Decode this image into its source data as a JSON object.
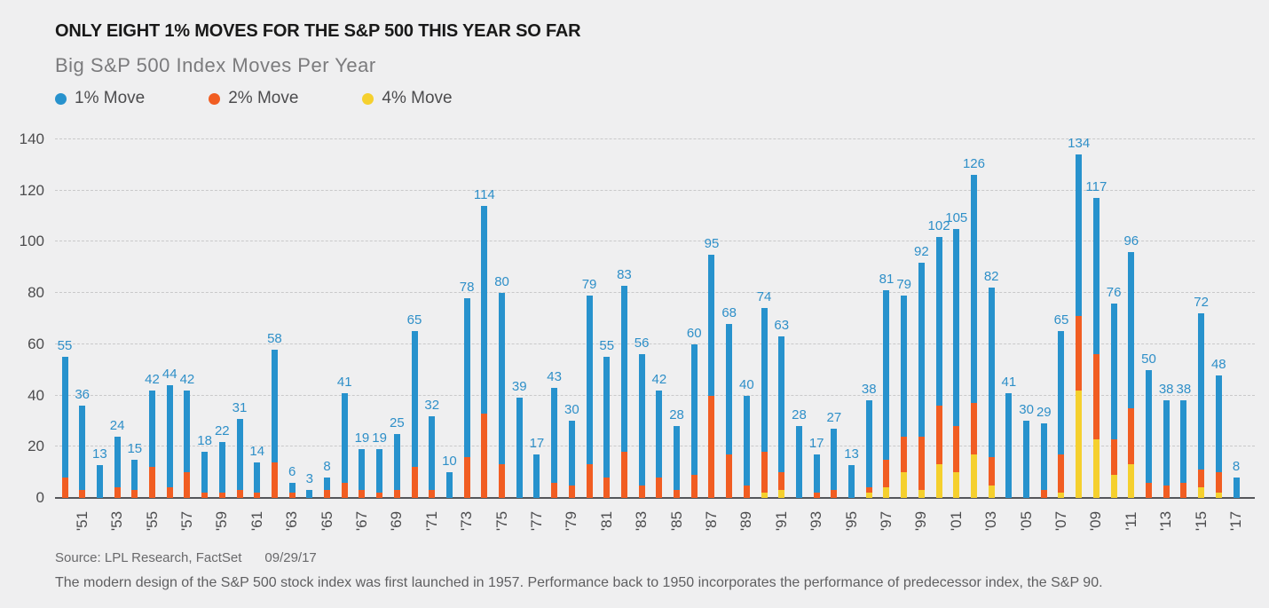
{
  "header": {
    "title": "ONLY EIGHT 1% MOVES FOR THE S&P 500 THIS YEAR SO FAR",
    "subtitle": "Big S&P 500 Index Moves Per Year"
  },
  "legend": {
    "items": [
      {
        "label": "1% Move",
        "color": "#2792cd"
      },
      {
        "label": "2% Move",
        "color": "#f15d22"
      },
      {
        "label": "4% Move",
        "color": "#f5d02e"
      }
    ]
  },
  "colors": {
    "background": "#efeff0",
    "bar_1pct": "#2792cd",
    "bar_2pct": "#f15d22",
    "bar_4pct": "#f5d02e",
    "value_label": "#2e8fc8",
    "axis_text": "#4c4c4e",
    "gridline": "#c9c9ca",
    "axis_line": "#55565a"
  },
  "axes": {
    "y_ticks": [
      0,
      20,
      40,
      60,
      80,
      100,
      120,
      140
    ],
    "x_labels": [
      "'51",
      "'53",
      "'55",
      "'57",
      "'59",
      "'61",
      "'63",
      "'65",
      "'67",
      "'69",
      "'71",
      "'73",
      "'75",
      "'77",
      "'79",
      "'81",
      "'83",
      "'85",
      "'87",
      "'89",
      "'91",
      "'93",
      "'95",
      "'97",
      "'99",
      "'01",
      "'03",
      "'05",
      "'07",
      "'09",
      "'11",
      "'13",
      "'15",
      "'17"
    ]
  },
  "footer": {
    "source": "Source: LPL Research, FactSet",
    "date": "09/29/17",
    "note": "The modern design of the S&P 500 stock index was first launched in 1957. Performance back to 1950 incorporates the performance of predecessor index, the S&P 90."
  },
  "chart_data": {
    "type": "bar",
    "stacked": true,
    "title": "ONLY EIGHT 1% MOVES FOR THE S&P 500 THIS YEAR SO FAR",
    "subtitle": "Big S&P 500 Index Moves Per Year",
    "xlabel": "Year",
    "ylabel": "Number of moves",
    "ylim": [
      0,
      140
    ],
    "grid": "horizontal-dashed",
    "legend_position": "top",
    "years": [
      1950,
      1951,
      1952,
      1953,
      1954,
      1955,
      1956,
      1957,
      1958,
      1959,
      1960,
      1961,
      1962,
      1963,
      1964,
      1965,
      1966,
      1967,
      1968,
      1969,
      1970,
      1971,
      1972,
      1973,
      1974,
      1975,
      1976,
      1977,
      1978,
      1979,
      1980,
      1981,
      1982,
      1983,
      1984,
      1985,
      1986,
      1987,
      1988,
      1989,
      1990,
      1991,
      1992,
      1993,
      1994,
      1995,
      1996,
      1997,
      1998,
      1999,
      2000,
      2001,
      2002,
      2003,
      2004,
      2005,
      2006,
      2007,
      2008,
      2009,
      2010,
      2011,
      2012,
      2013,
      2014,
      2015,
      2016,
      2017
    ],
    "series": [
      {
        "name": "1% Move",
        "color": "#2792cd",
        "role": "total-bar-height-and-label",
        "values": [
          55,
          36,
          13,
          24,
          15,
          42,
          44,
          42,
          18,
          22,
          31,
          14,
          58,
          6,
          3,
          8,
          41,
          19,
          19,
          25,
          65,
          32,
          10,
          78,
          114,
          80,
          39,
          17,
          43,
          30,
          79,
          55,
          83,
          56,
          42,
          28,
          60,
          95,
          68,
          40,
          74,
          63,
          28,
          17,
          27,
          13,
          38,
          81,
          79,
          92,
          102,
          105,
          126,
          82,
          41,
          30,
          29,
          65,
          134,
          117,
          76,
          96,
          50,
          38,
          38,
          72,
          48,
          8
        ]
      },
      {
        "name": "2% Move",
        "color": "#f15d22",
        "role": "middle-segment",
        "values": [
          8,
          3,
          0,
          4,
          3,
          12,
          4,
          10,
          2,
          2,
          3,
          2,
          14,
          2,
          0,
          3,
          6,
          3,
          2,
          3,
          12,
          3,
          0,
          16,
          33,
          13,
          0,
          0,
          6,
          5,
          13,
          8,
          18,
          5,
          8,
          3,
          9,
          40,
          17,
          5,
          16,
          7,
          0,
          2,
          3,
          0,
          2,
          11,
          14,
          21,
          23,
          18,
          20,
          11,
          0,
          0,
          3,
          15,
          29,
          33,
          14,
          22,
          6,
          5,
          6,
          7,
          8,
          0
        ]
      },
      {
        "name": "4% Move",
        "color": "#f5d02e",
        "role": "bottom-segment",
        "values": [
          0,
          0,
          0,
          0,
          0,
          0,
          0,
          0,
          0,
          0,
          0,
          0,
          0,
          0,
          0,
          0,
          0,
          0,
          0,
          0,
          0,
          0,
          0,
          0,
          0,
          0,
          0,
          0,
          0,
          0,
          0,
          0,
          0,
          0,
          0,
          0,
          0,
          0,
          0,
          0,
          2,
          3,
          0,
          0,
          0,
          0,
          2,
          4,
          10,
          3,
          13,
          10,
          17,
          5,
          0,
          0,
          0,
          2,
          42,
          23,
          9,
          13,
          0,
          0,
          0,
          4,
          2,
          0
        ]
      }
    ]
  }
}
